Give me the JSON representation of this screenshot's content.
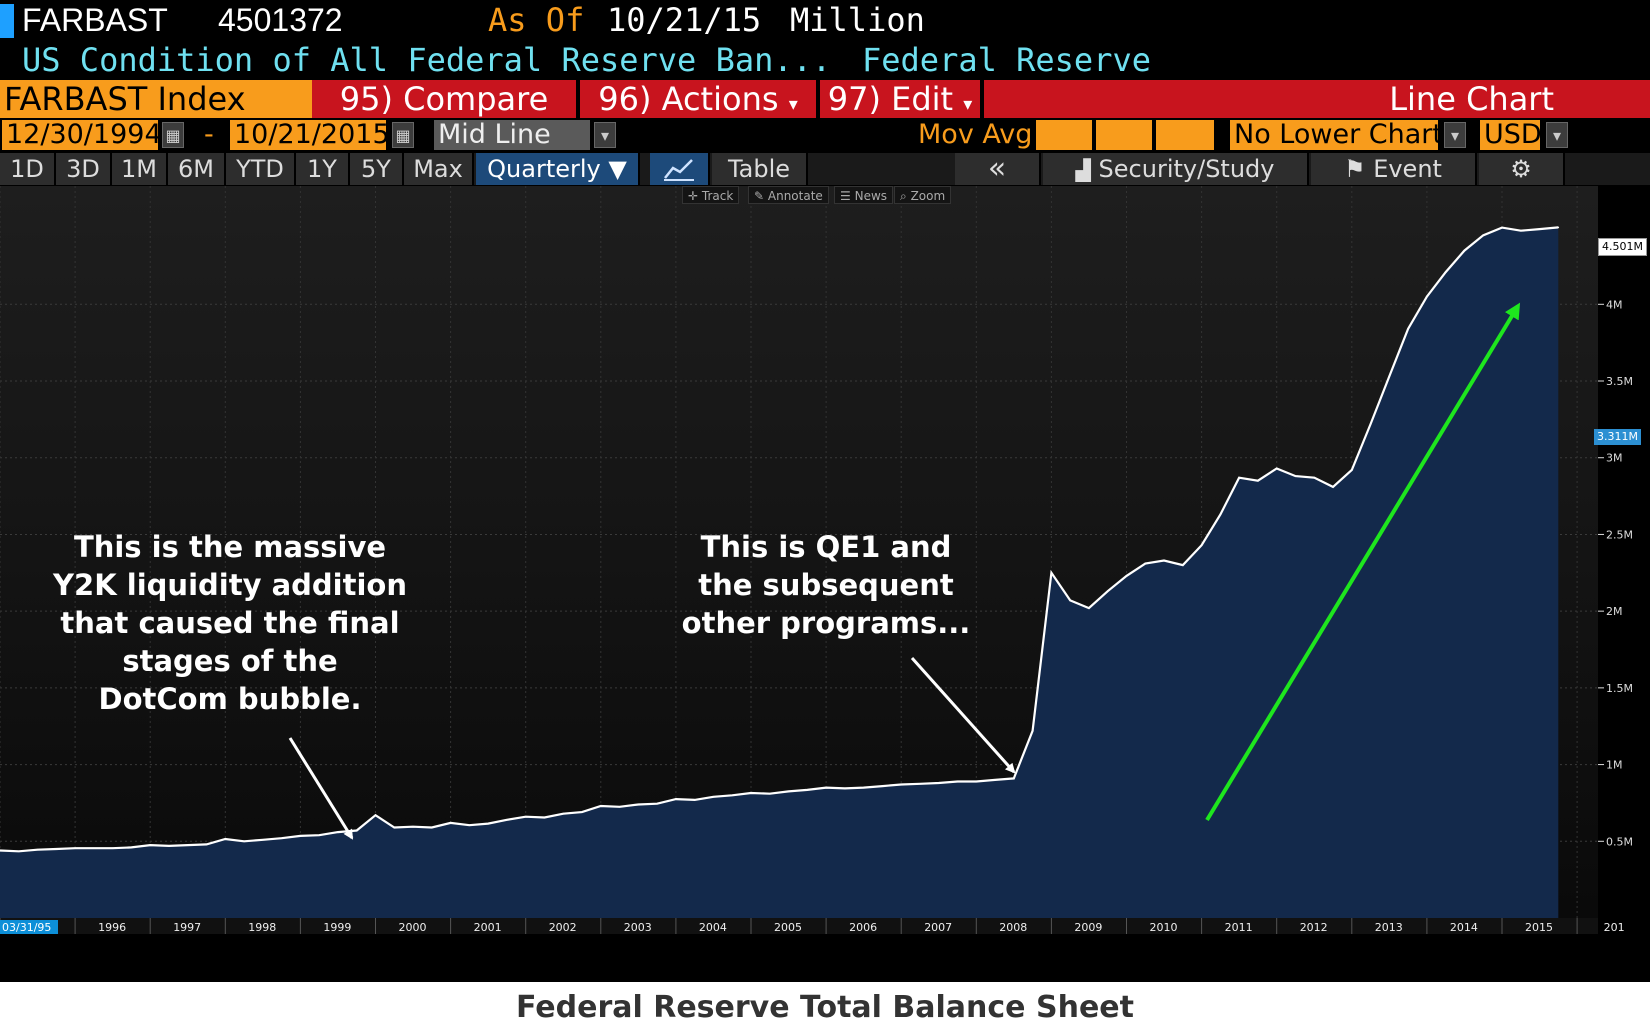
{
  "header": {
    "ticker": "FARBAST",
    "value": "4501372",
    "as_of_label": "As Of",
    "as_of_date": "10/21/15",
    "units": "Million",
    "description": "US Condition of All Federal Reserve Ban...",
    "source": "Federal Reserve"
  },
  "command_bar": {
    "security": "FARBAST Index",
    "compare": "95) Compare",
    "actions": "96) Actions",
    "edit": "97) Edit",
    "chart_type": "Line Chart",
    "dropdown_glyph": "▾"
  },
  "range_bar": {
    "start_date": "12/30/1994",
    "separator": "-",
    "end_date": "10/21/2015",
    "line_mode": "Mid Line",
    "mov_avg_label": "Mov Avg",
    "lower_chart": "No Lower Chart",
    "currency": "USD",
    "calendar_glyph": "▦",
    "dropdown_glyph": "▾"
  },
  "period_tabs": [
    "1D",
    "3D",
    "1M",
    "6M",
    "YTD",
    "1Y",
    "5Y",
    "Max"
  ],
  "frequency": "Quarterly ▼",
  "view_tabs": {
    "table": "Table",
    "collapse": "«",
    "security_study": "Security/Study",
    "event": "Event",
    "settings_glyph": "⚙"
  },
  "mini_toolbar": {
    "track": "Track",
    "annotate": "Annotate",
    "news": "News",
    "zoom": "Zoom"
  },
  "price_tags": {
    "last": "4.501M",
    "marker": "3.311M"
  },
  "annotations": {
    "y2k": [
      "This is the massive",
      "Y2K liquidity addition",
      "that caused the final",
      "stages of the",
      "DotCom bubble."
    ],
    "qe1": [
      "This is QE1 and",
      "the subsequent",
      "other programs..."
    ]
  },
  "caption": "Federal Reserve Total Balance Sheet",
  "colors": {
    "background": "#000000",
    "area_fill": "#13294b",
    "line": "#ffffff",
    "trend_arrow": "#1ee61e",
    "bloomberg_orange": "#f89c1c",
    "bloomberg_red": "#c8141e"
  },
  "chart_data": {
    "type": "area",
    "title": "",
    "y_unit": "Million",
    "ylim": [
      0,
      4800000
    ],
    "y_ticks": [
      {
        "v": 500000,
        "label": "0.5M"
      },
      {
        "v": 1000000,
        "label": "1M"
      },
      {
        "v": 1500000,
        "label": "1.5M"
      },
      {
        "v": 2000000,
        "label": "2M"
      },
      {
        "v": 2500000,
        "label": "2.5M"
      },
      {
        "v": 3000000,
        "label": "3M"
      },
      {
        "v": 3500000,
        "label": "3.5M"
      },
      {
        "v": 4000000,
        "label": "4M"
      }
    ],
    "x_start_label": "03/31/95",
    "x_year_labels": [
      "1996",
      "1997",
      "1998",
      "1999",
      "2000",
      "2001",
      "2002",
      "2003",
      "2004",
      "2005",
      "2006",
      "2007",
      "2008",
      "2009",
      "2010",
      "2011",
      "2012",
      "2013",
      "2014",
      "2015",
      "201"
    ],
    "grid": true,
    "series": [
      {
        "x": [
          1995.0,
          1995.25,
          1995.5,
          1995.75,
          1996.0,
          1996.25,
          1996.5,
          1996.75,
          1997.0,
          1997.25,
          1997.5,
          1997.75,
          1998.0,
          1998.25,
          1998.5,
          1998.75,
          1999.0,
          1999.25,
          1999.5,
          1999.75,
          2000.0,
          2000.25,
          2000.5,
          2000.75,
          2001.0,
          2001.25,
          2001.5,
          2001.75,
          2002.0,
          2002.25,
          2002.5,
          2002.75,
          2003.0,
          2003.25,
          2003.5,
          2003.75,
          2004.0,
          2004.25,
          2004.5,
          2004.75,
          2005.0,
          2005.25,
          2005.5,
          2005.75,
          2006.0,
          2006.25,
          2006.5,
          2006.75,
          2007.0,
          2007.25,
          2007.5,
          2007.75,
          2008.0,
          2008.25,
          2008.5,
          2008.75,
          2009.0,
          2009.25,
          2009.5,
          2009.75,
          2010.0,
          2010.25,
          2010.5,
          2010.75,
          2011.0,
          2011.25,
          2011.5,
          2011.75,
          2012.0,
          2012.25,
          2012.5,
          2012.75,
          2013.0,
          2013.25,
          2013.5,
          2013.75,
          2014.0,
          2014.25,
          2014.5,
          2014.75,
          2015.0,
          2015.25,
          2015.5,
          2015.75
        ],
        "y": [
          440000,
          435000,
          445000,
          450000,
          455000,
          455000,
          455000,
          460000,
          475000,
          470000,
          475000,
          480000,
          515000,
          500000,
          510000,
          520000,
          535000,
          540000,
          560000,
          570000,
          670000,
          590000,
          595000,
          590000,
          620000,
          605000,
          615000,
          640000,
          660000,
          655000,
          680000,
          690000,
          730000,
          725000,
          740000,
          745000,
          775000,
          770000,
          790000,
          800000,
          815000,
          810000,
          825000,
          835000,
          850000,
          845000,
          850000,
          860000,
          870000,
          875000,
          880000,
          890000,
          890000,
          900000,
          910000,
          1220000,
          2250000,
          2070000,
          2020000,
          2130000,
          2230000,
          2310000,
          2330000,
          2300000,
          2430000,
          2630000,
          2870000,
          2850000,
          2930000,
          2880000,
          2870000,
          2810000,
          2920000,
          3220000,
          3530000,
          3840000,
          4050000,
          4210000,
          4350000,
          4450000,
          4500000,
          4480000,
          4490000,
          4501372
        ]
      }
    ]
  }
}
